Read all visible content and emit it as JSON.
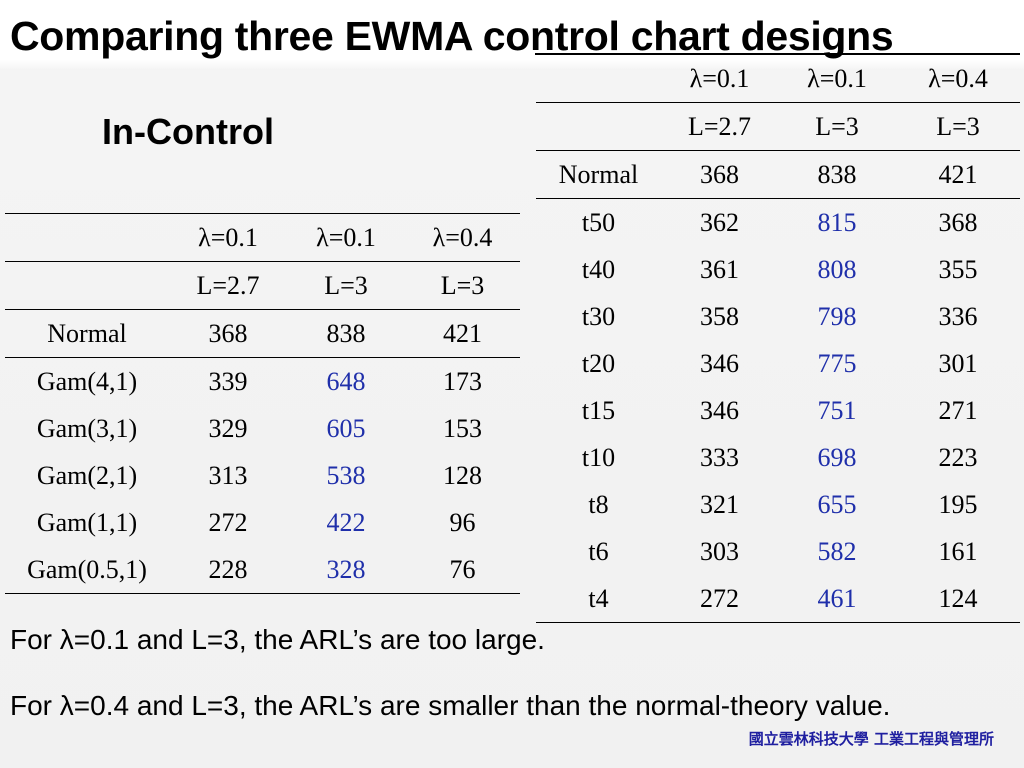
{
  "title": "Comparing three EWMA control chart designs",
  "subtitle": "In-Control",
  "left_table": {
    "header_lambda": [
      "",
      "λ=0.1",
      "λ=0.1",
      "λ=0.4"
    ],
    "header_L": [
      "",
      "L=2.7",
      "L=3",
      "L=3"
    ],
    "rows": [
      [
        "Normal",
        "368",
        "838",
        "421"
      ],
      [
        "Gam(4,1)",
        "339",
        "648",
        "173"
      ],
      [
        "Gam(3,1)",
        "329",
        "605",
        "153"
      ],
      [
        "Gam(2,1)",
        "313",
        "538",
        "128"
      ],
      [
        "Gam(1,1)",
        "272",
        "422",
        "96"
      ],
      [
        "Gam(0.5,1)",
        "228",
        "328",
        "76"
      ]
    ]
  },
  "right_table": {
    "header_lambda": [
      "",
      "λ=0.1",
      "λ=0.1",
      "λ=0.4"
    ],
    "header_L": [
      "",
      "L=2.7",
      "L=3",
      "L=3"
    ],
    "rows": [
      [
        "Normal",
        "368",
        "838",
        "421"
      ],
      [
        "t50",
        "362",
        "815",
        "368"
      ],
      [
        "t40",
        "361",
        "808",
        "355"
      ],
      [
        "t30",
        "358",
        "798",
        "336"
      ],
      [
        "t20",
        "346",
        "775",
        "301"
      ],
      [
        "t15",
        "346",
        "751",
        "271"
      ],
      [
        "t10",
        "333",
        "698",
        "223"
      ],
      [
        "t8",
        "321",
        "655",
        "195"
      ],
      [
        "t6",
        "303",
        "582",
        "161"
      ],
      [
        "t4",
        "272",
        "461",
        "124"
      ]
    ]
  },
  "notes": [
    "For λ=0.1 and L=3, the ARL’s are too large.",
    "For λ=0.4 and L=3, the ARL’s are smaller than the normal-theory value."
  ],
  "footer": "國立雲林科技大學 工業工程與管理所",
  "colors": {
    "highlight": "#1f2faa",
    "footer": "#1f1fa0"
  }
}
